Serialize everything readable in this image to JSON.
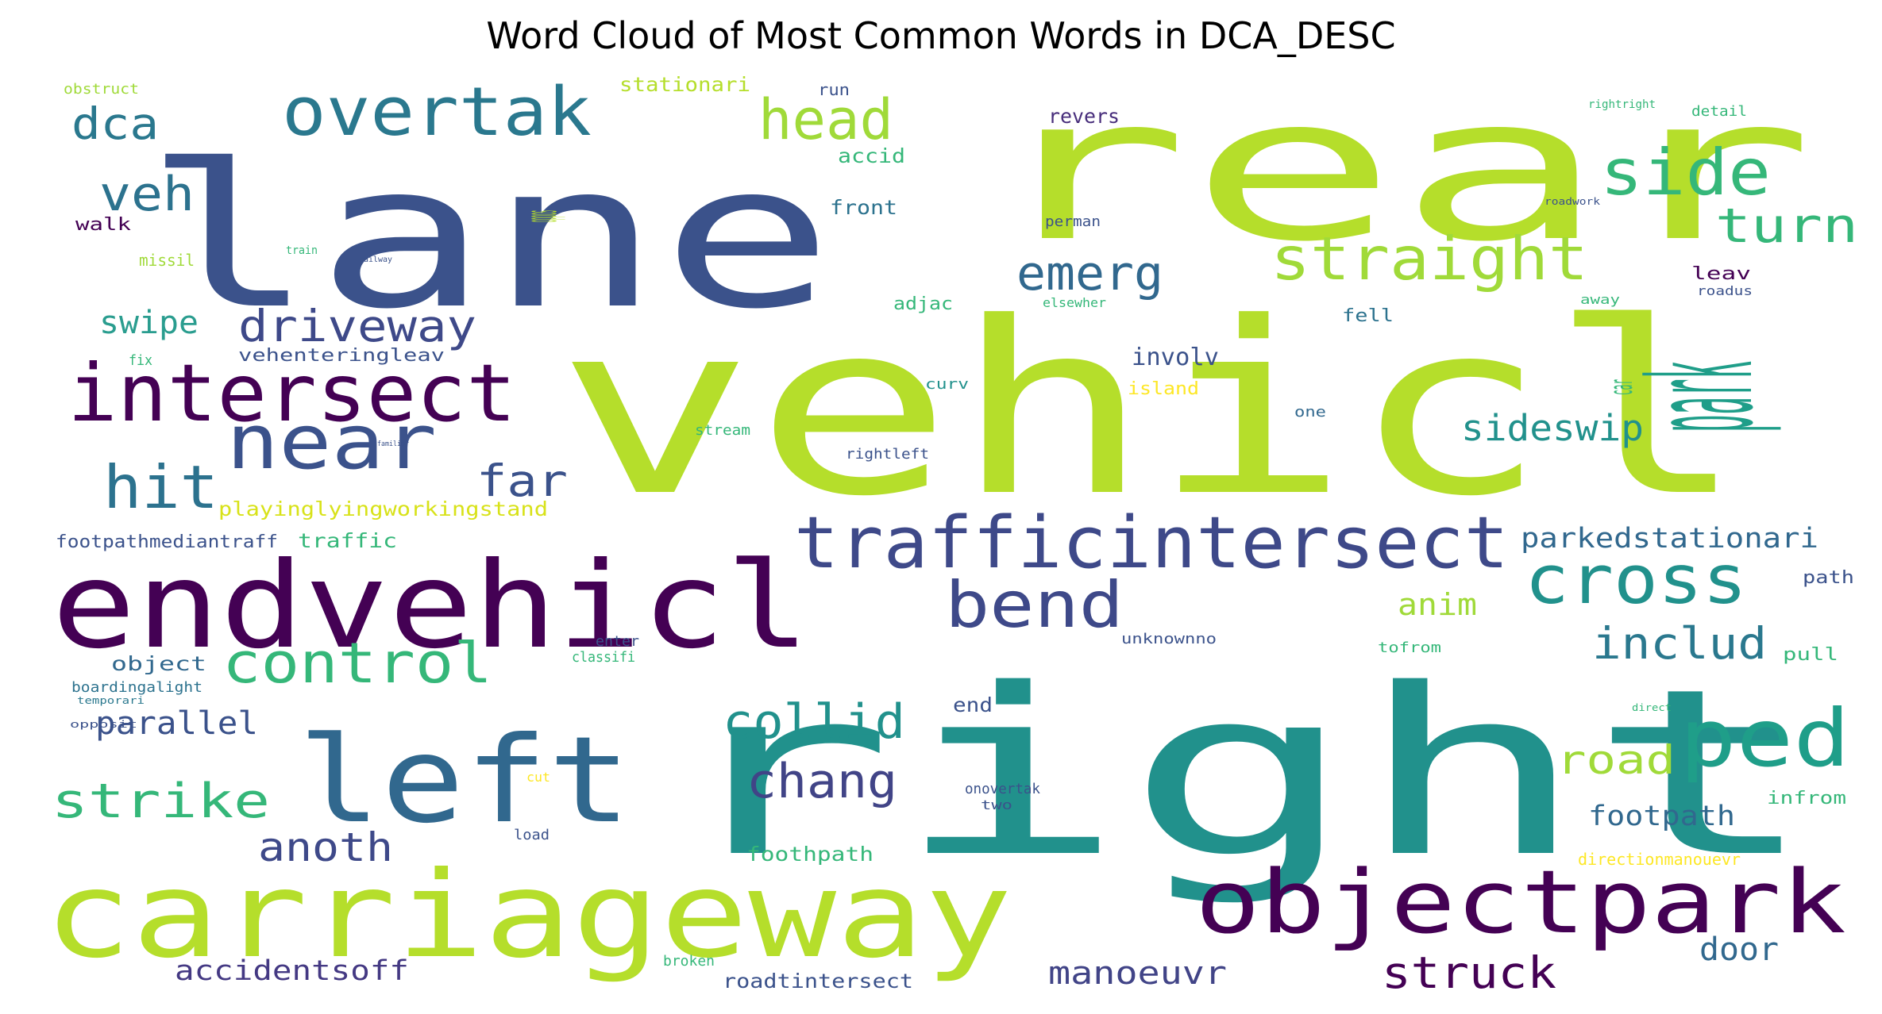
{
  "chart_data": {
    "type": "wordcloud",
    "title": "Word Cloud of Most Common Words in DCA_DESC",
    "words": [
      {
        "text": "vehicl",
        "color": "#b5de2b"
      },
      {
        "text": "lane",
        "color": "#3b528b"
      },
      {
        "text": "rear",
        "color": "#b5de2b"
      },
      {
        "text": "right",
        "color": "#21918c"
      },
      {
        "text": "endvehicl",
        "color": "#440154"
      },
      {
        "text": "carriageway",
        "color": "#b5de2b"
      },
      {
        "text": "left",
        "color": "#31688e"
      },
      {
        "text": "objectpark",
        "color": "#440154"
      },
      {
        "text": "trafficintersect",
        "color": "#3e4989"
      },
      {
        "text": "intersect",
        "color": "#440154"
      },
      {
        "text": "near",
        "color": "#3b528b"
      },
      {
        "text": "overtak",
        "color": "#2a788e"
      },
      {
        "text": "straight",
        "color": "#a0da39"
      },
      {
        "text": "bend",
        "color": "#3e4989"
      },
      {
        "text": "cross",
        "color": "#21918c"
      },
      {
        "text": "ped",
        "color": "#1f9e89"
      },
      {
        "text": "side",
        "color": "#35b779"
      },
      {
        "text": "control",
        "color": "#35b779"
      },
      {
        "text": "head",
        "color": "#a0da39"
      },
      {
        "text": "hit",
        "color": "#2c728e"
      },
      {
        "text": "veh",
        "color": "#2c728e"
      },
      {
        "text": "dca",
        "color": "#2a788e"
      },
      {
        "text": "driveway",
        "color": "#3e4989"
      },
      {
        "text": "emerg",
        "color": "#31688e"
      },
      {
        "text": "turn",
        "color": "#35b779"
      },
      {
        "text": "park",
        "color": "#1f9e89"
      },
      {
        "text": "far",
        "color": "#3b528b"
      },
      {
        "text": "strike",
        "color": "#35b779"
      },
      {
        "text": "collid",
        "color": "#21918c"
      },
      {
        "text": "chang",
        "color": "#414487"
      },
      {
        "text": "road",
        "color": "#a0da39"
      },
      {
        "text": "includ",
        "color": "#2a788e"
      },
      {
        "text": "sideswip",
        "color": "#21918c"
      },
      {
        "text": "parkedstationari",
        "color": "#31688e"
      },
      {
        "text": "anoth",
        "color": "#3e4989"
      },
      {
        "text": "struck",
        "color": "#440154"
      },
      {
        "text": "manoeuvr",
        "color": "#414487"
      },
      {
        "text": "swipe",
        "color": "#2a9d8f"
      },
      {
        "text": "parallel",
        "color": "#3b528b"
      },
      {
        "text": "footpath",
        "color": "#31688e"
      },
      {
        "text": "door",
        "color": "#31688e"
      },
      {
        "text": "anim",
        "color": "#a0da39"
      },
      {
        "text": "accidentsoff",
        "color": "#443983"
      },
      {
        "text": "involv",
        "color": "#3b528b"
      },
      {
        "text": "object",
        "color": "#31688e"
      },
      {
        "text": "roadtintersect",
        "color": "#3b528b"
      },
      {
        "text": "foothpath",
        "color": "#35b779"
      },
      {
        "text": "stationari",
        "color": "#b5de2b"
      },
      {
        "text": "playinglyingworkingstand",
        "color": "#d8e219"
      },
      {
        "text": "footpathmediantraff",
        "color": "#3b528b"
      },
      {
        "text": "traffic",
        "color": "#35b779"
      },
      {
        "text": "vehenteringleav",
        "color": "#3b528b"
      },
      {
        "text": "front",
        "color": "#2c728e"
      },
      {
        "text": "accid",
        "color": "#35b779"
      },
      {
        "text": "revers",
        "color": "#472d7b"
      },
      {
        "text": "run",
        "color": "#3b528b"
      },
      {
        "text": "obstruct",
        "color": "#a0da39"
      },
      {
        "text": "walk",
        "color": "#440154"
      },
      {
        "text": "missil",
        "color": "#a0da39"
      },
      {
        "text": "fix",
        "color": "#35b779"
      },
      {
        "text": "adjac",
        "color": "#35b779"
      },
      {
        "text": "fell",
        "color": "#2c728e"
      },
      {
        "text": "curv",
        "color": "#21918c"
      },
      {
        "text": "island",
        "color": "#fde725"
      },
      {
        "text": "one",
        "color": "#31688e"
      },
      {
        "text": "rightleft",
        "color": "#3b528b"
      },
      {
        "text": "stream",
        "color": "#35b779"
      },
      {
        "text": "boardingalight",
        "color": "#2c728e"
      },
      {
        "text": "temporari",
        "color": "#2a788e"
      },
      {
        "text": "opposit",
        "color": "#3b528b"
      },
      {
        "text": "classifi",
        "color": "#35b779"
      },
      {
        "text": "enter",
        "color": "#3b528b"
      },
      {
        "text": "end",
        "color": "#3b528b"
      },
      {
        "text": "unknownno",
        "color": "#3b528b"
      },
      {
        "text": "tofrom",
        "color": "#35b779"
      },
      {
        "text": "onovertak",
        "color": "#3b528b"
      },
      {
        "text": "two",
        "color": "#3b528b"
      },
      {
        "text": "load",
        "color": "#3b528b"
      },
      {
        "text": "cut",
        "color": "#fde725"
      },
      {
        "text": "broken",
        "color": "#35b779"
      },
      {
        "text": "directionmanouevr",
        "color": "#fde725"
      },
      {
        "text": "infrom",
        "color": "#35b779"
      },
      {
        "text": "pull",
        "color": "#35b779"
      },
      {
        "text": "path",
        "color": "#3b528b"
      },
      {
        "text": "direct",
        "color": "#35b779"
      },
      {
        "text": "leav",
        "color": "#440154"
      },
      {
        "text": "roadus",
        "color": "#3b528b"
      },
      {
        "text": "away",
        "color": "#35b779"
      },
      {
        "text": "car",
        "color": "#35b779"
      },
      {
        "text": "elsewher",
        "color": "#35b779"
      },
      {
        "text": "perman",
        "color": "#3b528b"
      },
      {
        "text": "roadwork",
        "color": "#3b528b"
      },
      {
        "text": "rightright",
        "color": "#35b779"
      },
      {
        "text": "detail",
        "color": "#35b779"
      },
      {
        "text": "train",
        "color": "#35b779"
      },
      {
        "text": "railway",
        "color": "#3b528b"
      },
      {
        "text": "oppos",
        "color": "#b5de2b"
      },
      {
        "text": "familiar",
        "color": "#3b528b"
      }
    ]
  }
}
